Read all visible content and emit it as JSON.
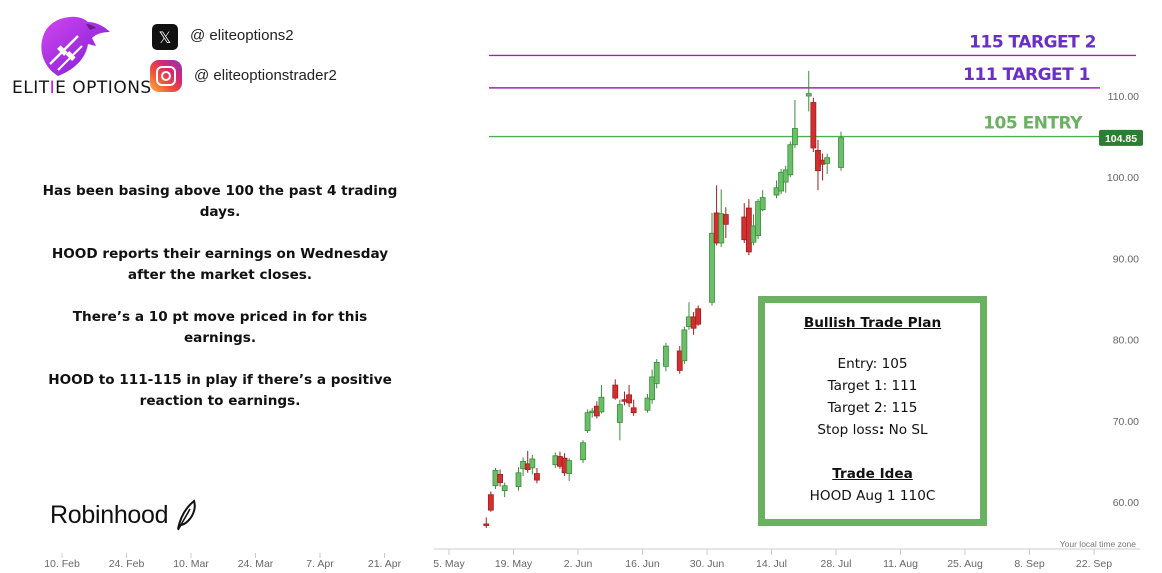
{
  "brand": {
    "name_part1": "ELIT",
    "name_accent": "I",
    "name_part2": "E OPTIONS",
    "accent_color": "#c21cd9"
  },
  "social": {
    "x_handle": "@ eliteoptions2",
    "instagram_handle": "@ eliteoptionstrader2"
  },
  "notes": [
    "Has been basing above 100 the past 4 trading days.",
    "HOOD reports their earnings on Wednesday after the market closes.",
    "There’s a 10 pt move priced in for this earnings.",
    "HOOD to 111-115 in play if there’s a positive reaction to earnings."
  ],
  "robinhood_label": "Robinhood",
  "trade_plan": {
    "title": "Bullish Trade Plan",
    "entry": "Entry: 105",
    "target1": "Target 1: 111",
    "target2": "Target 2: 115",
    "stop_loss_label": "Stop loss",
    "stop_loss_value": " No SL",
    "idea_title": "Trade Idea",
    "idea": "HOOD Aug 1 110C",
    "border_color": "#6ab262"
  },
  "chart_data": {
    "type": "candlestick",
    "title": "",
    "ylim": [
      57,
      118
    ],
    "y_ticks": [
      60,
      70,
      80,
      90,
      100,
      110
    ],
    "y_tick_labels": [
      "60.00",
      "70.00",
      "80.00",
      "90.00",
      "100.00",
      "110.00"
    ],
    "x_tick_labels": [
      "10. Feb",
      "24. Feb",
      "10. Mar",
      "24. Mar",
      "7. Apr",
      "21. Apr",
      "5. May",
      "19. May",
      "2. Jun",
      "16. Jun",
      "30. Jun",
      "14. Jul",
      "28. Jul",
      "11. Aug",
      "25. Aug",
      "8. Sep",
      "22. Sep"
    ],
    "last_price_label": "104.85",
    "last_price": 104.85,
    "timezone_note": "Your local time zone",
    "up_color": "#6abf69",
    "down_color": "#d32f2f",
    "levels": [
      {
        "value": 115,
        "label": "115 TARGET 2",
        "color": "#9c27b0"
      },
      {
        "value": 111,
        "label": "111 TARGET 1",
        "color": "#9c27b0"
      },
      {
        "value": 105,
        "label": "105 ENTRY",
        "color": "#4caf50"
      }
    ],
    "candles": [
      {
        "date": "2025-05-12",
        "o": 57.3,
        "h": 58.1,
        "l": 56.8,
        "c": 57.1
      },
      {
        "date": "2025-05-13",
        "o": 60.9,
        "h": 61.3,
        "l": 58.8,
        "c": 59.0
      },
      {
        "date": "2025-05-14",
        "o": 62.0,
        "h": 64.2,
        "l": 61.6,
        "c": 63.9
      },
      {
        "date": "2025-05-15",
        "o": 63.4,
        "h": 64.0,
        "l": 61.9,
        "c": 62.4
      },
      {
        "date": "2025-05-16",
        "o": 61.4,
        "h": 62.4,
        "l": 60.6,
        "c": 62.0
      },
      {
        "date": "2025-05-19",
        "o": 61.9,
        "h": 64.3,
        "l": 61.4,
        "c": 63.6
      },
      {
        "date": "2025-05-20",
        "o": 64.1,
        "h": 65.5,
        "l": 63.2,
        "c": 65.0
      },
      {
        "date": "2025-05-21",
        "o": 64.7,
        "h": 66.3,
        "l": 63.6,
        "c": 64.0
      },
      {
        "date": "2025-05-22",
        "o": 64.2,
        "h": 65.8,
        "l": 63.4,
        "c": 65.3
      },
      {
        "date": "2025-05-23",
        "o": 63.5,
        "h": 64.2,
        "l": 62.3,
        "c": 62.7
      },
      {
        "date": "2025-05-27",
        "o": 64.6,
        "h": 66.1,
        "l": 64.2,
        "c": 65.7
      },
      {
        "date": "2025-05-28",
        "o": 65.6,
        "h": 66.2,
        "l": 64.1,
        "c": 64.4
      },
      {
        "date": "2025-05-29",
        "o": 65.4,
        "h": 66.0,
        "l": 63.2,
        "c": 63.6
      },
      {
        "date": "2025-05-30",
        "o": 63.5,
        "h": 65.4,
        "l": 62.6,
        "c": 65.1
      },
      {
        "date": "2025-06-02",
        "o": 65.2,
        "h": 67.6,
        "l": 64.8,
        "c": 67.3
      },
      {
        "date": "2025-06-03",
        "o": 68.8,
        "h": 71.4,
        "l": 68.5,
        "c": 71.0
      },
      {
        "date": "2025-06-04",
        "o": 71.0,
        "h": 71.6,
        "l": 70.4,
        "c": 71.2
      },
      {
        "date": "2025-06-05",
        "o": 71.8,
        "h": 72.4,
        "l": 70.3,
        "c": 70.6
      },
      {
        "date": "2025-06-06",
        "o": 71.1,
        "h": 74.4,
        "l": 70.9,
        "c": 72.9
      },
      {
        "date": "2025-06-09",
        "o": 74.4,
        "h": 75.1,
        "l": 72.6,
        "c": 72.8
      },
      {
        "date": "2025-06-10",
        "o": 69.8,
        "h": 72.6,
        "l": 67.6,
        "c": 72.0
      },
      {
        "date": "2025-06-11",
        "o": 72.6,
        "h": 73.6,
        "l": 71.9,
        "c": 72.4
      },
      {
        "date": "2025-06-12",
        "o": 73.2,
        "h": 74.4,
        "l": 71.7,
        "c": 72.2
      },
      {
        "date": "2025-06-13",
        "o": 71.6,
        "h": 72.6,
        "l": 70.6,
        "c": 71.0
      },
      {
        "date": "2025-06-16",
        "o": 71.3,
        "h": 73.3,
        "l": 71.0,
        "c": 72.8
      },
      {
        "date": "2025-06-17",
        "o": 72.6,
        "h": 76.3,
        "l": 72.1,
        "c": 75.4
      },
      {
        "date": "2025-06-18",
        "o": 74.6,
        "h": 77.6,
        "l": 74.0,
        "c": 77.2
      },
      {
        "date": "2025-06-20",
        "o": 76.7,
        "h": 79.6,
        "l": 76.1,
        "c": 79.2
      },
      {
        "date": "2025-06-23",
        "o": 78.6,
        "h": 79.2,
        "l": 75.8,
        "c": 76.2
      },
      {
        "date": "2025-06-24",
        "o": 77.4,
        "h": 81.6,
        "l": 77.0,
        "c": 81.2
      },
      {
        "date": "2025-06-25",
        "o": 81.6,
        "h": 84.6,
        "l": 81.2,
        "c": 82.8
      },
      {
        "date": "2025-06-26",
        "o": 82.8,
        "h": 83.4,
        "l": 80.6,
        "c": 81.4
      },
      {
        "date": "2025-06-27",
        "o": 83.8,
        "h": 84.2,
        "l": 81.7,
        "c": 81.9
      },
      {
        "date": "2025-06-30",
        "o": 84.6,
        "h": 95.6,
        "l": 84.2,
        "c": 93.1
      },
      {
        "date": "2025-07-01",
        "o": 95.6,
        "h": 99.0,
        "l": 91.6,
        "c": 91.9
      },
      {
        "date": "2025-07-02",
        "o": 91.9,
        "h": 98.5,
        "l": 91.4,
        "c": 95.5
      },
      {
        "date": "2025-07-03",
        "o": 95.4,
        "h": 96.3,
        "l": 92.5,
        "c": 94.2
      },
      {
        "date": "2025-07-07",
        "o": 95.1,
        "h": 96.8,
        "l": 91.9,
        "c": 92.3
      },
      {
        "date": "2025-07-08",
        "o": 96.2,
        "h": 97.3,
        "l": 90.4,
        "c": 90.8
      },
      {
        "date": "2025-07-09",
        "o": 92.0,
        "h": 95.4,
        "l": 91.6,
        "c": 94.0
      },
      {
        "date": "2025-07-10",
        "o": 92.8,
        "h": 97.3,
        "l": 92.4,
        "c": 97.0
      },
      {
        "date": "2025-07-11",
        "o": 96.0,
        "h": 98.4,
        "l": 95.8,
        "c": 97.5
      },
      {
        "date": "2025-07-14",
        "o": 97.8,
        "h": 99.6,
        "l": 97.4,
        "c": 98.7
      },
      {
        "date": "2025-07-15",
        "o": 98.3,
        "h": 101.0,
        "l": 97.9,
        "c": 100.6
      },
      {
        "date": "2025-07-16",
        "o": 99.4,
        "h": 101.4,
        "l": 98.1,
        "c": 100.9
      },
      {
        "date": "2025-07-17",
        "o": 100.3,
        "h": 104.4,
        "l": 100.0,
        "c": 104.0
      },
      {
        "date": "2025-07-18",
        "o": 104.0,
        "h": 109.5,
        "l": 103.6,
        "c": 106.0
      },
      {
        "date": "2025-07-21",
        "o": 110.0,
        "h": 113.1,
        "l": 108.1,
        "c": 110.3
      },
      {
        "date": "2025-07-22",
        "o": 109.2,
        "h": 109.8,
        "l": 103.1,
        "c": 103.6
      },
      {
        "date": "2025-07-23",
        "o": 103.3,
        "h": 104.6,
        "l": 98.4,
        "c": 100.8
      },
      {
        "date": "2025-07-24",
        "o": 102.1,
        "h": 102.9,
        "l": 99.6,
        "c": 101.6
      },
      {
        "date": "2025-07-25",
        "o": 101.7,
        "h": 102.9,
        "l": 100.4,
        "c": 102.4
      },
      {
        "date": "2025-07-28",
        "o": 101.2,
        "h": 105.6,
        "l": 100.8,
        "c": 104.85
      }
    ]
  }
}
